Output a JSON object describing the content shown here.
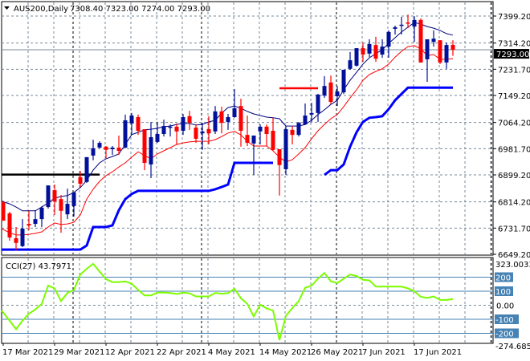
{
  "header": {
    "symbol_timeframe": "AUS200,Daily",
    "ohlc_text": "7308.40 7323.00 7274.00 7293.00"
  },
  "indicator_label": "CCI(27) 43.7971",
  "colors": {
    "bull": "#00109a",
    "bear": "#ff0000",
    "ma_upper": "#000080",
    "ma_lower": "#ff0000",
    "trail": "#0000ff",
    "cci": "#7cfc00",
    "cci_levels": "#4682b4",
    "grid": "#778899",
    "current_price_line": "#778899"
  },
  "chart_data": [
    {
      "type": "candlestick",
      "title": "",
      "ylim": [
        6649.2,
        7399.2
      ],
      "grid": true,
      "y_tick_labels": [
        "7399.20",
        "7314.20",
        "7231.70",
        "7149.20",
        "7064.20",
        "6981.70",
        "6899.20",
        "6814.20",
        "6731.70",
        "6649.20"
      ],
      "current_price": 7293.0,
      "current_price_label": "7293.00",
      "x_tick_labels": [
        {
          "label": "17 Mar 2021",
          "index": 1
        },
        {
          "label": "29 Mar 2021",
          "index": 9
        },
        {
          "label": "12 Apr 2021",
          "index": 17
        },
        {
          "label": "22 Apr 2021",
          "index": 25
        },
        {
          "label": "4 May 2021",
          "index": 33
        },
        {
          "label": "14 May 2021",
          "index": 41
        },
        {
          "label": "26 May 2021",
          "index": 49
        },
        {
          "label": "7 Jun 2021",
          "index": 57
        },
        {
          "label": "17 Jun 2021",
          "index": 65
        }
      ],
      "ohlc_fields": [
        "open",
        "high",
        "low",
        "close"
      ],
      "candles": [
        [
          6813,
          6818,
          6755,
          6755
        ],
        [
          6778,
          6783,
          6692,
          6702
        ],
        [
          6700,
          6735,
          6662,
          6685
        ],
        [
          6675,
          6760,
          6672,
          6730
        ],
        [
          6745,
          6786,
          6725,
          6740
        ],
        [
          6745,
          6788,
          6735,
          6760
        ],
        [
          6760,
          6801,
          6735,
          6796
        ],
        [
          6798,
          6866,
          6793,
          6866
        ],
        [
          6851,
          6869,
          6773,
          6816
        ],
        [
          6823,
          6836,
          6717,
          6786
        ],
        [
          6775,
          6856,
          6760,
          6808
        ],
        [
          6801,
          6844,
          6768,
          6844
        ],
        [
          6892,
          6912,
          6861,
          6871
        ],
        [
          6877,
          6955,
          6874,
          6955
        ],
        [
          6960,
          7010,
          6945,
          6983
        ],
        [
          6985,
          7005,
          6983,
          7000
        ],
        [
          6988,
          6990,
          6952,
          6978
        ],
        [
          6980,
          6990,
          6962,
          6985
        ],
        [
          6985,
          7023,
          6962,
          6975
        ],
        [
          6985,
          7089,
          6983,
          7071
        ],
        [
          7061,
          7094,
          7025,
          7086
        ],
        [
          7081,
          7089,
          7025,
          7038
        ],
        [
          7043,
          7043,
          6914,
          6937
        ],
        [
          6932,
          7066,
          6889,
          7018
        ],
        [
          7003,
          7066,
          7000,
          7028
        ],
        [
          7028,
          7073,
          7020,
          7053
        ],
        [
          7048,
          7058,
          7020,
          7051
        ],
        [
          7051,
          7061,
          6995,
          7036
        ],
        [
          7038,
          7091,
          7025,
          7081
        ],
        [
          7084,
          7101,
          7041,
          7063
        ],
        [
          7048,
          7058,
          7000,
          7013
        ],
        [
          7030,
          7063,
          6978,
          7036
        ],
        [
          7043,
          7084,
          6995,
          7030
        ],
        [
          7036,
          7116,
          7028,
          7099
        ],
        [
          7099,
          7114,
          7030,
          7063
        ],
        [
          7066,
          7091,
          7041,
          7081
        ],
        [
          7081,
          7169,
          7079,
          7109
        ],
        [
          7116,
          7139,
          6988,
          7038
        ],
        [
          7025,
          7086,
          6990,
          7000
        ],
        [
          6998,
          7023,
          6899,
          7023
        ],
        [
          7036,
          7058,
          6995,
          7051
        ],
        [
          7051,
          7058,
          6990,
          7028
        ],
        [
          7038,
          7079,
          6975,
          6978
        ],
        [
          6980,
          6980,
          6834,
          6930
        ],
        [
          6917,
          7053,
          6899,
          7043
        ],
        [
          7041,
          7053,
          6995,
          7025
        ],
        [
          7025,
          7066,
          7020,
          7063
        ],
        [
          7058,
          7124,
          7056,
          7086
        ],
        [
          7089,
          7126,
          7066,
          7094
        ],
        [
          7094,
          7154,
          7066,
          7152
        ],
        [
          7149,
          7210,
          7142,
          7179
        ],
        [
          7190,
          7212,
          7121,
          7129
        ],
        [
          7147,
          7179,
          7116,
          7162
        ],
        [
          7159,
          7230,
          7154,
          7230
        ],
        [
          7233,
          7286,
          7230,
          7260
        ],
        [
          7243,
          7298,
          7240,
          7298
        ],
        [
          7298,
          7316,
          7255,
          7278
        ],
        [
          7281,
          7326,
          7270,
          7311
        ],
        [
          7308,
          7334,
          7255,
          7265
        ],
        [
          7278,
          7326,
          7268,
          7303
        ],
        [
          7303,
          7354,
          7268,
          7349
        ],
        [
          7359,
          7369,
          7341,
          7364
        ],
        [
          7369,
          7397,
          7341,
          7372
        ],
        [
          7379,
          7404,
          7361,
          7376
        ],
        [
          7366,
          7399,
          7318,
          7387
        ],
        [
          7387,
          7392,
          7253,
          7253
        ],
        [
          7263,
          7326,
          7192,
          7326
        ],
        [
          7318,
          7354,
          7303,
          7328
        ],
        [
          7323,
          7323,
          7248,
          7253
        ],
        [
          7253,
          7316,
          7233,
          7308
        ],
        [
          7308.4,
          7323,
          7274,
          7293
        ]
      ],
      "overlays": [
        {
          "id": "ma-upper",
          "color": "#000080",
          "values": [
            6816,
            6808,
            6798,
            6786,
            6786,
            6786,
            6798,
            6811,
            6826,
            6831,
            6834,
            6844,
            6859,
            6882,
            6914,
            6937,
            6950,
            6957,
            6965,
            6995,
            7026,
            7033,
            7041,
            7043,
            7046,
            7051,
            7053,
            7058,
            7061,
            7061,
            7056,
            7058,
            7066,
            7071,
            7094,
            7111,
            7116,
            7109,
            7099,
            7091,
            7086,
            7081,
            7079,
            7076,
            7053,
            7053,
            7053,
            7058,
            7071,
            7089,
            7104,
            7121,
            7134,
            7167,
            7197,
            7222,
            7248,
            7268,
            7281,
            7293,
            7313,
            7331,
            7349,
            7364,
            7379,
            7374,
            7366,
            7361,
            7354,
            7344,
            7339
          ]
        },
        {
          "id": "ma-lower",
          "color": "#ff0000",
          "values": [
            6730,
            6717,
            6710,
            6710,
            6712,
            6715,
            6720,
            6735,
            6748,
            6743,
            6745,
            6750,
            6773,
            6823,
            6854,
            6879,
            6897,
            6909,
            6924,
            6937,
            6955,
            6972,
            6960,
            6950,
            6965,
            6975,
            6985,
            6995,
            7000,
            7003,
            7005,
            7005,
            7005,
            7010,
            7020,
            7031,
            7036,
            7025,
            7005,
            6990,
            6990,
            6990,
            6975,
            6955,
            6940,
            6947,
            6965,
            6985,
            7013,
            7038,
            7058,
            7076,
            7089,
            7114,
            7142,
            7167,
            7197,
            7215,
            7225,
            7233,
            7248,
            7270,
            7288,
            7303,
            7306,
            7296,
            7275,
            7278,
            7263,
            7263,
            7265
          ]
        },
        {
          "id": "trailing-stop",
          "color": "#0000ff",
          "values": [
            6664,
            6664,
            6664,
            6664,
            6664,
            6664,
            6664,
            6664,
            6664,
            6664,
            6664,
            6664,
            6664,
            6677,
            6735,
            6735,
            6735,
            6740,
            6788,
            6823,
            6839,
            6849,
            6849,
            6849,
            6849,
            6849,
            6849,
            6849,
            6849,
            6849,
            6849,
            6849,
            6849,
            6854,
            6861,
            6869,
            6937,
            6937,
            6937,
            6937,
            6937,
            6937,
            6937,
            null,
            null,
            null,
            null,
            null,
            null,
            null,
            6899,
            6914,
            6914,
            6932,
            6988,
            7033,
            7066,
            7079,
            7081,
            7084,
            7106,
            7134,
            7154,
            7174,
            7174,
            7174,
            7174,
            7174,
            7174,
            7174,
            7174
          ]
        }
      ],
      "horizontal_lines": [
        {
          "price": 6900,
          "from_index": 1,
          "to_index": 16,
          "color": "#000000"
        },
        {
          "price": 7172,
          "from_index": 44,
          "to_index": 50,
          "color": "#ff0000"
        }
      ]
    },
    {
      "type": "line",
      "title": "CCI(27) 43.7971",
      "ylim": [
        -274.685,
        323.0033
      ],
      "top_label": "323.0033",
      "bottom_label": "-274.685",
      "zero_label": "0.00",
      "levels": [
        {
          "value": 200,
          "label": "200"
        },
        {
          "value": 100,
          "label": "100"
        },
        {
          "value": -100,
          "label": "-100"
        },
        {
          "value": -200,
          "label": "-200"
        }
      ],
      "values": [
        -38,
        -110,
        -171,
        -110,
        -60,
        -30,
        10,
        140,
        120,
        30,
        88,
        109,
        219,
        260,
        295,
        240,
        186,
        165,
        165,
        170,
        154,
        110,
        70,
        70,
        90,
        90,
        88,
        80,
        90,
        85,
        63,
        63,
        63,
        88,
        82,
        86,
        118,
        50,
        10,
        -80,
        4,
        -22,
        -38,
        -248,
        -76,
        -20,
        30,
        124,
        140,
        190,
        230,
        171,
        158,
        190,
        219,
        208,
        181,
        177,
        133,
        133,
        133,
        133,
        133,
        120,
        100,
        60,
        52,
        63,
        38,
        38,
        43.7971
      ]
    }
  ]
}
